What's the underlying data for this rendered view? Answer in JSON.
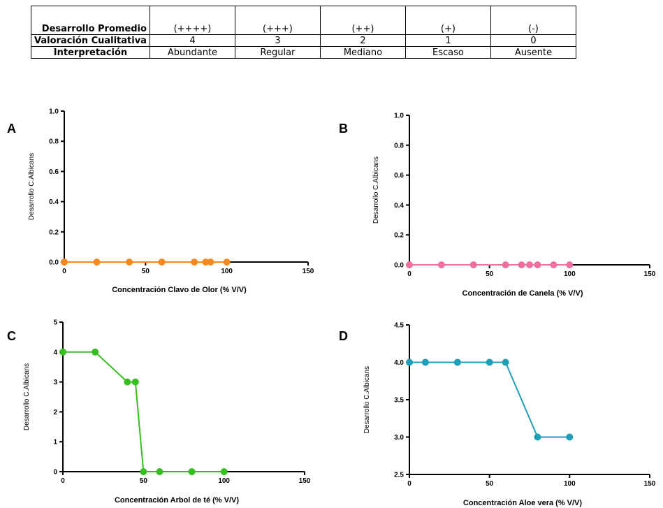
{
  "table": {
    "rows": [
      {
        "label": "Desarrollo Promedio",
        "cells": [
          "(++++)",
          "(+++)",
          "(++)",
          "(+)",
          "(-)"
        ]
      },
      {
        "label": "Valoración Cualitativa",
        "cells": [
          "4",
          "3",
          "2",
          "1",
          "0"
        ]
      },
      {
        "label": "Interpretación",
        "cells": [
          "Abundante",
          "Regular",
          "Mediano",
          "Escaso",
          "Ausente"
        ]
      }
    ]
  },
  "chart_data": [
    {
      "panel": "A",
      "type": "line",
      "color": "#f5881f",
      "xlabel": "Concentración Clavo de Olor (% V/V)",
      "ylabel": "Desarrollo C.Albicans",
      "xlim": [
        0,
        150
      ],
      "ylim": [
        0,
        1.0
      ],
      "xticks": [
        0,
        50,
        100,
        150
      ],
      "yticks": [
        0.0,
        0.2,
        0.4,
        0.6,
        0.8,
        1.0
      ],
      "ytick_decimals": 1,
      "x": [
        0,
        20,
        40,
        60,
        80,
        87,
        90,
        100
      ],
      "y": [
        0,
        0,
        0,
        0,
        0,
        0,
        0,
        0
      ]
    },
    {
      "panel": "B",
      "type": "line",
      "color": "#f06fa0",
      "xlabel": "Concentración  de Canela (% V/V)",
      "ylabel": "Desarrollo C.Albicans",
      "xlim": [
        0,
        150
      ],
      "ylim": [
        0,
        1.0
      ],
      "xticks": [
        0,
        50,
        100,
        150
      ],
      "yticks": [
        0.0,
        0.2,
        0.4,
        0.6,
        0.8,
        1.0
      ],
      "ytick_decimals": 1,
      "x": [
        0,
        20,
        40,
        60,
        70,
        75,
        80,
        90,
        100
      ],
      "y": [
        0,
        0,
        0,
        0,
        0,
        0,
        0,
        0,
        0
      ]
    },
    {
      "panel": "C",
      "type": "line",
      "color": "#36c01f",
      "xlabel": "Concentración Arbol de té (% V/V)",
      "ylabel": "Desarrollo C.Albicans",
      "xlim": [
        0,
        150
      ],
      "ylim": [
        0,
        5
      ],
      "xticks": [
        0,
        50,
        100,
        150
      ],
      "yticks": [
        0,
        1,
        2,
        3,
        4,
        5
      ],
      "ytick_decimals": 0,
      "x": [
        0,
        20,
        40,
        45,
        50,
        60,
        80,
        100
      ],
      "y": [
        4,
        4,
        3,
        3,
        0,
        0,
        0,
        0
      ]
    },
    {
      "panel": "D",
      "type": "line",
      "color": "#1c9fb8",
      "xlabel": "Concentración Aloe vera (% V/V)",
      "ylabel": "Desarrollo C.Albicans",
      "xlim": [
        0,
        150
      ],
      "ylim": [
        2.5,
        4.5
      ],
      "xticks": [
        0,
        50,
        100,
        150
      ],
      "yticks": [
        2.5,
        3.0,
        3.5,
        4.0,
        4.5
      ],
      "ytick_decimals": 1,
      "x": [
        0,
        10,
        30,
        50,
        60,
        80,
        100
      ],
      "y": [
        4,
        4,
        4,
        4,
        4,
        3,
        3
      ]
    }
  ]
}
